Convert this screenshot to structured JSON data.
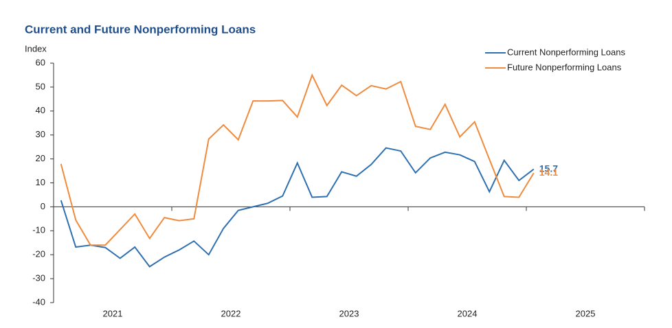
{
  "chart_data": {
    "type": "line",
    "title": "Current and Future Nonperforming Loans",
    "y_label": "Index",
    "x": [
      2021.0625,
      2021.1875,
      2021.3125,
      2021.4375,
      2021.5625,
      2021.6875,
      2021.8125,
      2021.9375,
      2022.0625,
      2022.1875,
      2022.3125,
      2022.4375,
      2022.5625,
      2022.6875,
      2022.8125,
      2022.9375,
      2023.0625,
      2023.1875,
      2023.3125,
      2023.4375,
      2023.5625,
      2023.6875,
      2023.8125,
      2023.9375,
      2024.0625,
      2024.1875,
      2024.3125,
      2024.4375,
      2024.5625,
      2024.6875,
      2024.8125,
      2024.9375,
      2025.0625
    ],
    "series": [
      {
        "name": "Current Nonperforming Loans",
        "color": "#2e6fb0",
        "values": [
          2.7,
          -16.8,
          -16,
          -17,
          -21.5,
          -16.8,
          -25,
          -21,
          -18,
          -14.3,
          -20,
          -9,
          -1.5,
          0,
          1.5,
          4.5,
          18.3,
          4,
          4.3,
          14.6,
          12.8,
          17.7,
          24.6,
          23.3,
          14.2,
          20.4,
          22.8,
          21.7,
          18.9,
          6.3,
          19.4,
          11,
          15.7
        ]
      },
      {
        "name": "Future Nonperforming Loans",
        "color": "#f08a3c",
        "values": [
          17.9,
          -5.5,
          -16,
          -16,
          -9.5,
          -3,
          -13.2,
          -4.5,
          -5.8,
          -5,
          28.3,
          34.2,
          28,
          44.2,
          44.2,
          44.4,
          37.5,
          55,
          42.3,
          50.8,
          46.4,
          50.6,
          49.2,
          52.3,
          33.6,
          32.3,
          42.8,
          29.2,
          35.5,
          19.8,
          4.3,
          4,
          14.1
        ]
      }
    ],
    "xlim": [
      2021,
      2026
    ],
    "xticks": [
      {
        "value": 2021.5,
        "label": "2021"
      },
      {
        "value": 2022.5,
        "label": "2022"
      },
      {
        "value": 2023.5,
        "label": "2023"
      },
      {
        "value": 2024.5,
        "label": "2024"
      },
      {
        "value": 2025.5,
        "label": "2025"
      }
    ],
    "x_boundaries": [
      2022,
      2023,
      2024,
      2025,
      2026
    ],
    "ylim": [
      -40,
      60
    ],
    "yticks": [
      -40,
      -30,
      -20,
      -10,
      0,
      10,
      20,
      30,
      40,
      50,
      60
    ],
    "legend": "top-right"
  }
}
